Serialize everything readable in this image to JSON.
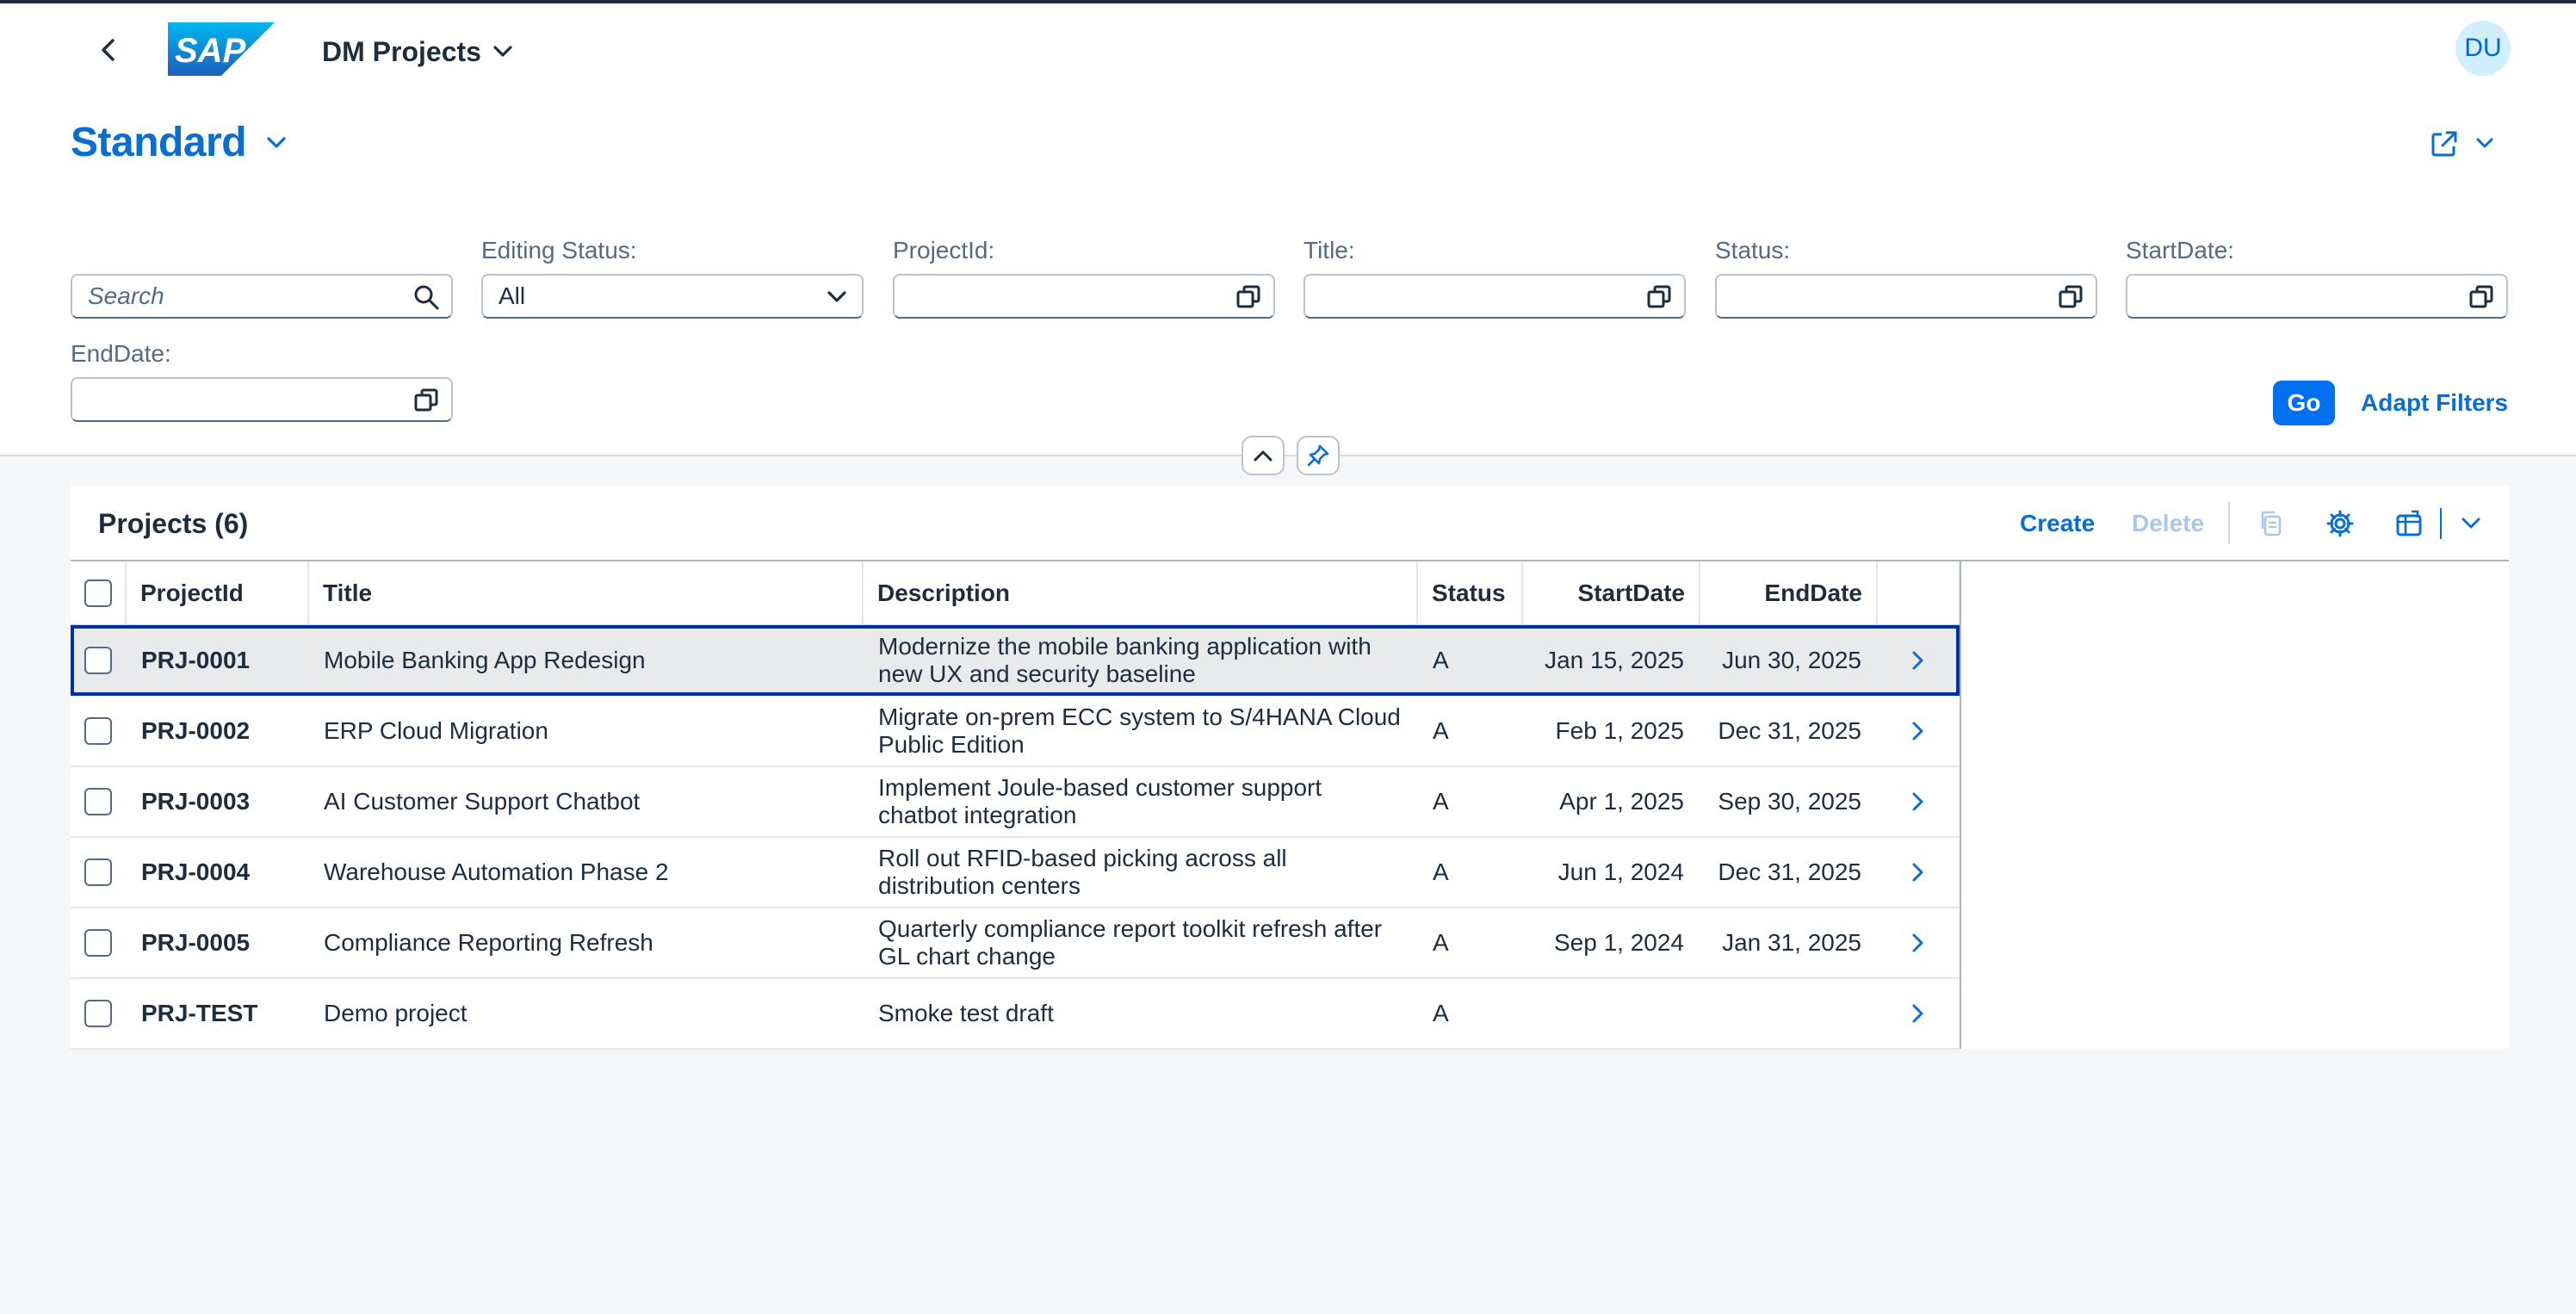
{
  "shell": {
    "logo_text": "SAP",
    "app_title": "DM Projects",
    "avatar_initials": "DU"
  },
  "header": {
    "variant": "Standard"
  },
  "filters": {
    "search_placeholder": "Search",
    "editing_status_label": "Editing Status:",
    "editing_status_value": "All",
    "project_id_label": "ProjectId:",
    "title_label": "Title:",
    "status_label": "Status:",
    "start_date_label": "StartDate:",
    "end_date_label": "EndDate:",
    "go": "Go",
    "adapt": "Adapt Filters"
  },
  "table": {
    "title": "Projects (6)",
    "create": "Create",
    "delete": "Delete",
    "columns": {
      "project_id": "ProjectId",
      "title": "Title",
      "description": "Description",
      "status": "Status",
      "start_date": "StartDate",
      "end_date": "EndDate"
    },
    "rows": [
      {
        "id": "PRJ-0001",
        "title": "Mobile Banking App Redesign",
        "desc": "Modernize the mobile banking application with new UX and security baseline",
        "status": "A",
        "start": "Jan 15, 2025",
        "end": "Jun 30, 2025"
      },
      {
        "id": "PRJ-0002",
        "title": "ERP Cloud Migration",
        "desc": "Migrate on-prem ECC system to S/4HANA Cloud Public Edition",
        "status": "A",
        "start": "Feb 1, 2025",
        "end": "Dec 31, 2025"
      },
      {
        "id": "PRJ-0003",
        "title": "AI Customer Support Chatbot",
        "desc": "Implement Joule-based customer support chatbot integration",
        "status": "A",
        "start": "Apr 1, 2025",
        "end": "Sep 30, 2025"
      },
      {
        "id": "PRJ-0004",
        "title": "Warehouse Automation Phase 2",
        "desc": "Roll out RFID-based picking across all distribution centers",
        "status": "A",
        "start": "Jun 1, 2024",
        "end": "Dec 31, 2025"
      },
      {
        "id": "PRJ-0005",
        "title": "Compliance Reporting Refresh",
        "desc": "Quarterly compliance report toolkit refresh after GL chart change",
        "status": "A",
        "start": "Sep 1, 2024",
        "end": "Jan 31, 2025"
      },
      {
        "id": "PRJ-TEST",
        "title": "Demo project",
        "desc": "Smoke test draft",
        "status": "A",
        "start": "",
        "end": ""
      }
    ]
  },
  "colors": {
    "accent": "#0a6ed1",
    "emphasized_button": "#0070f2",
    "selection_border": "#0032a5"
  }
}
